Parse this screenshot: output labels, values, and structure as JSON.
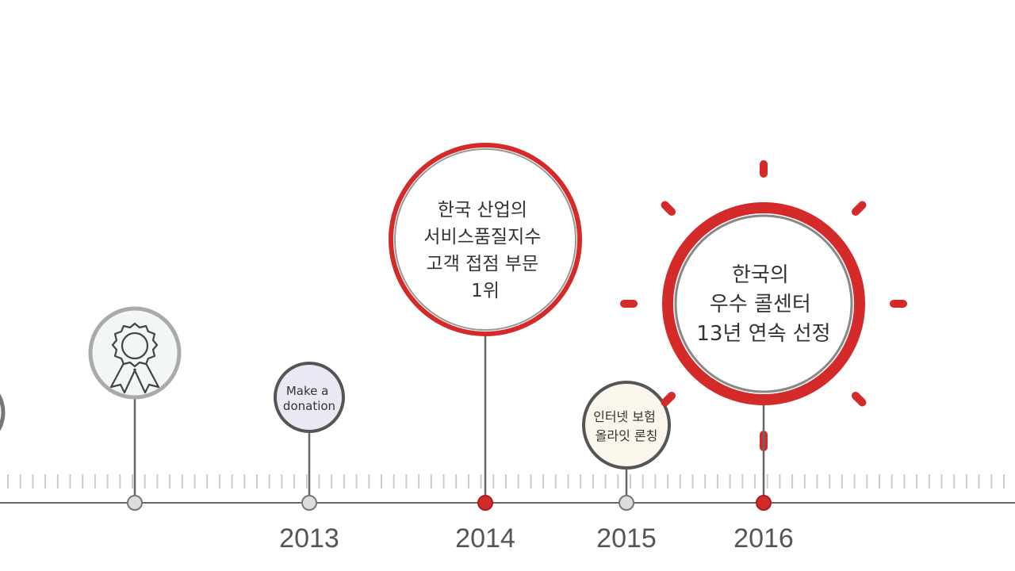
{
  "timeline": {
    "nodes": [
      {
        "lines": [
          "Make a",
          "donation"
        ]
      },
      {
        "lines": [
          "한국 산업의",
          "서비스품질지수",
          "고객 접점 부문",
          "1위"
        ]
      },
      {
        "lines": [
          "인터넷 보험",
          "올라잇 론칭"
        ]
      },
      {
        "lines": [
          "한국의",
          "우수 콜센터",
          "13년 연속 선정"
        ]
      }
    ],
    "years": [
      "2013",
      "2014",
      "2015",
      "2016"
    ]
  }
}
